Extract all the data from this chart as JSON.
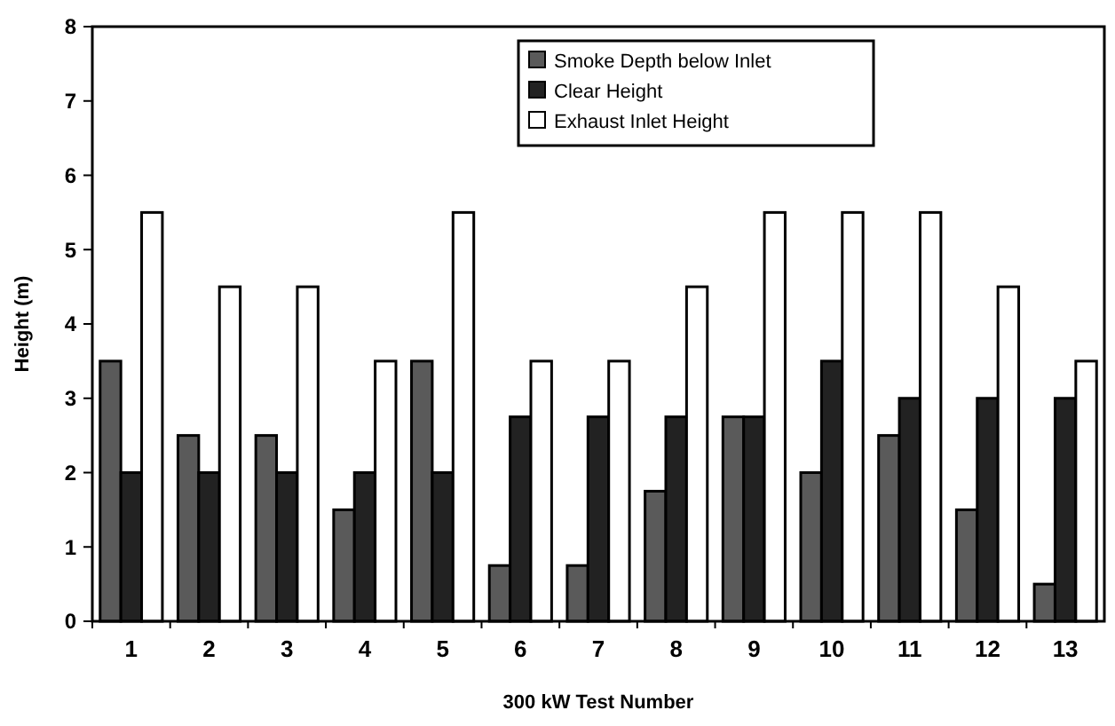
{
  "chart_data": {
    "type": "bar",
    "xlabel": "300 kW Test Number",
    "ylabel": "Height (m)",
    "categories": [
      "1",
      "2",
      "3",
      "4",
      "5",
      "6",
      "7",
      "8",
      "9",
      "10",
      "11",
      "12",
      "13"
    ],
    "series": [
      {
        "name": "Smoke Depth below Inlet",
        "color": "#5a5a5a",
        "values": [
          3.5,
          2.5,
          2.5,
          1.5,
          3.5,
          0.75,
          0.75,
          1.75,
          2.75,
          2,
          2.5,
          1.5,
          0.5
        ]
      },
      {
        "name": "Clear Height",
        "color": "#222222",
        "values": [
          2,
          2,
          2,
          2,
          2,
          2.75,
          2.75,
          2.75,
          2.75,
          3.5,
          3,
          3,
          3
        ]
      },
      {
        "name": "Exhaust Inlet Height",
        "color": "#ffffff",
        "values": [
          5.5,
          4.5,
          4.5,
          3.5,
          5.5,
          3.5,
          3.5,
          4.5,
          5.5,
          5.5,
          5.5,
          4.5,
          3.5
        ]
      }
    ],
    "ylim": [
      0,
      8
    ],
    "yticks": [
      0,
      1,
      2,
      3,
      4,
      5,
      6,
      7,
      8
    ],
    "grid": false,
    "legend": "top right"
  }
}
